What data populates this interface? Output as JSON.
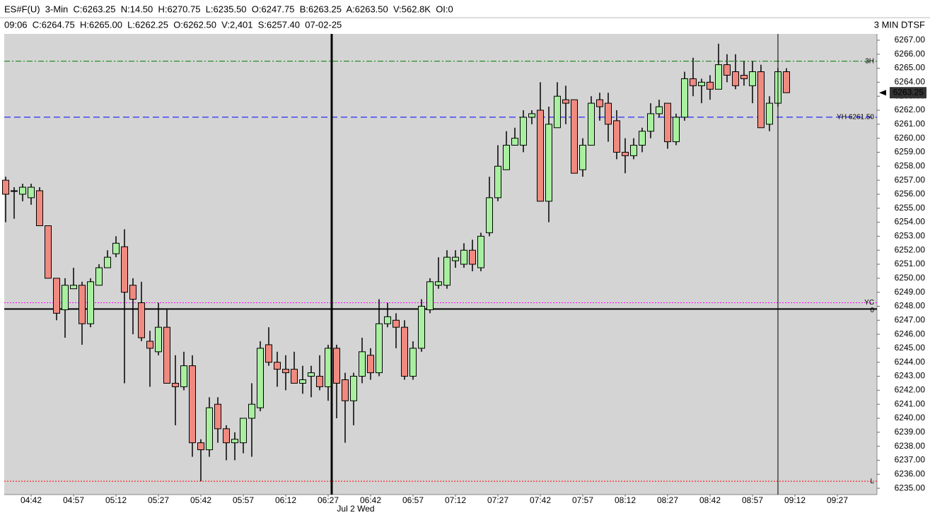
{
  "chart_data": {
    "type": "candlestick",
    "title": "ES#F(U)  3-Min  C:6263.25  N:14.50  H:6270.75  L:6235.50  O:6247.75  B:6263.25  A:6263.50  V:562.8K  OI:0",
    "subtitle": "09:06  C:6264.75  H:6265.00  L:6262.25  O:6262.50  V:2,401  S:6257.40  07-02-25",
    "timeframe_label": "3 MIN DTSF",
    "date_label": "Jul 2 Wed",
    "categories": [
      null,
      null,
      null,
      "04:42",
      null,
      null,
      null,
      null,
      "04:57",
      null,
      null,
      null,
      null,
      "05:12",
      null,
      null,
      null,
      null,
      "05:27",
      null,
      null,
      null,
      null,
      "05:42",
      null,
      null,
      null,
      null,
      "05:57",
      null,
      null,
      null,
      null,
      "06:12",
      null,
      null,
      null,
      null,
      "06:27",
      null,
      null,
      null,
      null,
      "06:42",
      null,
      null,
      null,
      null,
      "06:57",
      null,
      null,
      null,
      null,
      "07:12",
      null,
      null,
      null,
      null,
      "07:27",
      null,
      null,
      null,
      null,
      "07:42",
      null,
      null,
      null,
      null,
      "07:57",
      null,
      null,
      null,
      null,
      "08:12",
      null,
      null,
      null,
      null,
      "08:27",
      null,
      null,
      null,
      null,
      "08:42",
      null,
      null,
      null,
      null,
      "08:57",
      null,
      null,
      null,
      null,
      "09:12",
      null,
      null,
      null,
      null,
      "09:27",
      null,
      null,
      null,
      null
    ],
    "open": [
      6257,
      6256.25,
      6256,
      6255.75,
      6256.25,
      6253.75,
      6250,
      6247.75,
      6249.25,
      6249.5,
      6246.75,
      6249.5,
      6250.75,
      6251.75,
      6252.25,
      6249.5,
      6248.25,
      6245.5,
      6244.75,
      6246.5,
      6242.5,
      6242.25,
      6243.75,
      6238.25,
      6237.75,
      6241,
      6239.25,
      6238.25,
      6238.25,
      6240,
      6240.75,
      6245.25,
      6244,
      6243.5,
      6243.5,
      6242.5,
      6243,
      6243,
      6242.25,
      6245,
      6242.75,
      6241.25,
      6243,
      6244.5,
      6243.25,
      6246.75,
      6247,
      6246.5,
      6243,
      6245,
      6247.75,
      6249.5,
      6249.5,
      6251.25,
      6251,
      6252,
      6250.75,
      6253.25,
      6255.75,
      6257.75,
      6259.5,
      6259.5,
      6261.5,
      6262,
      6255.5,
      6260.75,
      6262.75,
      6262.75,
      6257.75,
      6259.5,
      6262.75,
      6262.5,
      6261.25,
      6259,
      6258.75,
      6259.5,
      6260.5,
      6261.75,
      6262.5,
      6259.75,
      6261.5,
      6264.25,
      6263.75,
      6264,
      6263.5,
      6265.25,
      6264.75,
      6264.5,
      6263.75,
      6264.75,
      6261,
      6262.5,
      6264.75,
      null,
      null,
      null,
      null,
      null,
      null,
      null,
      null,
      null,
      null
    ],
    "high": [
      6257.25,
      6256.5,
      6256.75,
      6256.75,
      6256.5,
      6253.75,
      6250,
      6250,
      6250.75,
      6249.75,
      6250,
      6251,
      6252,
      6253,
      6253.5,
      6250,
      6249.75,
      6246.25,
      6248.25,
      6247.75,
      6244.5,
      6244.75,
      6244.5,
      6238.5,
      6241.5,
      6241.5,
      6239.5,
      6239,
      6240,
      6242.5,
      6245.5,
      6246.5,
      6244.75,
      6244.5,
      6244.75,
      6243.75,
      6243.75,
      6244.5,
      6245.25,
      6245.25,
      6243.25,
      6243.25,
      6245.75,
      6245,
      6248.5,
      6248.25,
      6247.5,
      6247,
      6245.5,
      6248.5,
      6250,
      6251.5,
      6252,
      6252,
      6252.5,
      6252.75,
      6253.25,
      6257.25,
      6259.5,
      6260.5,
      6260.75,
      6262,
      6262,
      6264,
      6262.25,
      6264,
      6263.75,
      6262.75,
      6260,
      6263,
      6263.25,
      6263.25,
      6262,
      6260,
      6260,
      6260.75,
      6262.5,
      6262.75,
      6262.5,
      6261.75,
      6264.75,
      6265.75,
      6264.25,
      6264.5,
      6266.75,
      6266,
      6266,
      6265.5,
      6265.5,
      6265.25,
      6263,
      6265,
      6265,
      null,
      null,
      null,
      null,
      null,
      null,
      null,
      null,
      null,
      null
    ],
    "low": [
      6254,
      6254.25,
      6255.5,
      6255.25,
      6253.75,
      6250,
      6247,
      6245.75,
      6249.25,
      6245.25,
      6246.5,
      6249.5,
      6250.75,
      6251.5,
      6242.5,
      6246,
      6245.5,
      6242.25,
      6244.5,
      6242.5,
      6239.5,
      6242,
      6237.25,
      6235.5,
      6237.25,
      6238.25,
      6237,
      6237,
      6237.5,
      6237.25,
      6240.5,
      6243.75,
      6242.25,
      6242,
      6242.5,
      6241.75,
      6241.5,
      6242,
      6241.25,
      6240,
      6238.25,
      6239.5,
      6242.5,
      6242.75,
      6243,
      6246.5,
      6245,
      6242.75,
      6242.75,
      6244.75,
      6247.5,
      6249.25,
      6249.25,
      6250.75,
      6250.75,
      6250.5,
      6250.5,
      6253,
      6255.5,
      6257.75,
      6259.5,
      6259,
      6261,
      6255.5,
      6254,
      6260.75,
      6261,
      6257.5,
      6257.25,
      6259.5,
      6261.25,
      6259.75,
      6258.5,
      6257.5,
      6258.5,
      6259,
      6260,
      6261.5,
      6259.25,
      6259.5,
      6261.25,
      6263,
      6262.5,
      6262.75,
      6263.5,
      6264,
      6263.5,
      6263.75,
      6262.5,
      6260.75,
      6260.5,
      6262.25,
      6263.25,
      null,
      null,
      null,
      null,
      null,
      null,
      null,
      null,
      null,
      null
    ],
    "close": [
      6256,
      6256.25,
      6256.5,
      6256.5,
      6253.75,
      6250,
      6247.5,
      6249.5,
      6249.5,
      6246.75,
      6249.75,
      6250.75,
      6251.5,
      6252.5,
      6249,
      6248.5,
      6245.75,
      6245,
      6246.5,
      6242.5,
      6242.25,
      6243.75,
      6238.25,
      6237.75,
      6240.75,
      6239.25,
      6238.25,
      6238.5,
      6240,
      6241,
      6245,
      6244,
      6243.5,
      6243.25,
      6242.5,
      6242.75,
      6243.25,
      6242.25,
      6245,
      6242.5,
      6241.25,
      6243,
      6244.75,
      6243.25,
      6246.75,
      6247.25,
      6246.5,
      6243,
      6245,
      6248,
      6249.75,
      6249.75,
      6251.5,
      6251.5,
      6252,
      6251,
      6253,
      6255.75,
      6258,
      6259.5,
      6260,
      6261.5,
      6261.75,
      6255.5,
      6261,
      6263,
      6262.5,
      6257.5,
      6259.5,
      6262.5,
      6262.25,
      6261,
      6259,
      6258.75,
      6259.5,
      6260.5,
      6261.75,
      6262.25,
      6259.75,
      6261.5,
      6264.25,
      6263.75,
      6264,
      6263.5,
      6265.25,
      6264.5,
      6263.75,
      6264.25,
      6264.75,
      6260.75,
      6262.5,
      6264.75,
      6263.25,
      null,
      null,
      null,
      null,
      null,
      null,
      null,
      null,
      null,
      null
    ],
    "up_color": "#a8f0a0",
    "down_color": "#f08a80",
    "ylim": [
      6234.55,
      6267.45
    ],
    "yticks": [
      {
        "value": 6235,
        "label": "6235.00"
      },
      {
        "value": 6236,
        "label": "6236.00"
      },
      {
        "value": 6237,
        "label": "6237.00"
      },
      {
        "value": 6238,
        "label": "6238.00"
      },
      {
        "value": 6239,
        "label": "6239.00"
      },
      {
        "value": 6240,
        "label": "6240.00"
      },
      {
        "value": 6241,
        "label": "6241.00"
      },
      {
        "value": 6242,
        "label": "6242.00"
      },
      {
        "value": 6243,
        "label": "6243.00"
      },
      {
        "value": 6244,
        "label": "6244.00"
      },
      {
        "value": 6245,
        "label": "6245.00"
      },
      {
        "value": 6246,
        "label": "6246.00"
      },
      {
        "value": 6247,
        "label": "6247.00"
      },
      {
        "value": 6248,
        "label": "6248.00"
      },
      {
        "value": 6249,
        "label": "6249.00"
      },
      {
        "value": 6250,
        "label": "6250.00"
      },
      {
        "value": 6251,
        "label": "6251.00"
      },
      {
        "value": 6252,
        "label": "6252.00"
      },
      {
        "value": 6253,
        "label": "6253.00"
      },
      {
        "value": 6254,
        "label": "6254.00"
      },
      {
        "value": 6255,
        "label": "6255.00"
      },
      {
        "value": 6256,
        "label": "6256.00"
      },
      {
        "value": 6257,
        "label": "6257.00"
      },
      {
        "value": 6258,
        "label": "6258.00"
      },
      {
        "value": 6259,
        "label": "6259.00"
      },
      {
        "value": 6260,
        "label": "6260.00"
      },
      {
        "value": 6261,
        "label": "6261.00"
      },
      {
        "value": 6262,
        "label": "6262.00"
      },
      {
        "value": 6263,
        "label": "6263.00"
      },
      {
        "value": 6264,
        "label": "6264.00"
      },
      {
        "value": 6265,
        "label": "6265.00"
      },
      {
        "value": 6266,
        "label": "6266.00"
      },
      {
        "value": 6267,
        "label": "6267.00"
      }
    ],
    "levels": [
      {
        "label": "3H",
        "value": 6265.5,
        "color": "#008000",
        "style": "dashdot"
      },
      {
        "label": "YH 6261.50",
        "value": 6261.5,
        "color": "#0000ff",
        "style": "dashed"
      },
      {
        "label": "YC",
        "value": 6248.25,
        "color": "#ff00ff",
        "style": "dotted"
      },
      {
        "label": "0",
        "value": 6247.8,
        "color": "#000000",
        "style": "solid"
      },
      {
        "label": "L",
        "value": 6235.5,
        "color": "#ff0000",
        "style": "dotted"
      }
    ],
    "last_price": 6263.25
  }
}
